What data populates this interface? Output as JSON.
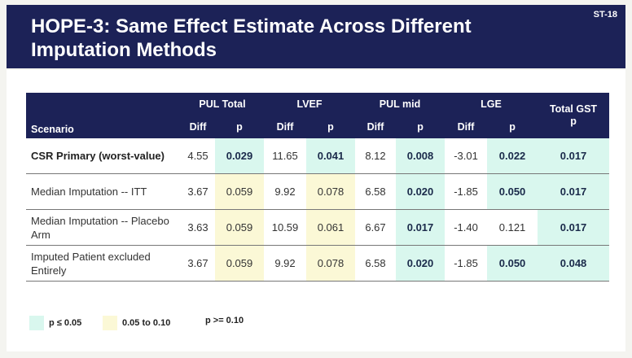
{
  "slide_id": "ST-18",
  "title": "HOPE-3: Same Effect Estimate Across Different Imputation Methods",
  "table": {
    "header_scenario": "Scenario",
    "groups": [
      "PUL Total",
      "LVEF",
      "PUL mid",
      "LGE"
    ],
    "gst_header": [
      "Total GST",
      "p"
    ],
    "sub_headers": [
      "Diff",
      "p"
    ],
    "rows": [
      {
        "scenario": "CSR Primary (worst-value)",
        "values": [
          "4.55",
          "0.029",
          "11.65",
          "0.041",
          "8.12",
          "0.008",
          "-3.01",
          "0.022",
          "0.017"
        ],
        "p_levels": [
          "sig",
          "sig",
          "sig",
          "sig",
          "sig"
        ]
      },
      {
        "scenario": "Median Imputation -- ITT",
        "values": [
          "3.67",
          "0.059",
          "9.92",
          "0.078",
          "6.58",
          "0.020",
          "-1.85",
          "0.050",
          "0.017"
        ],
        "p_levels": [
          "trend",
          "trend",
          "sig",
          "sig",
          "sig"
        ]
      },
      {
        "scenario": "Median Imputation -- Placebo Arm",
        "values": [
          "3.63",
          "0.059",
          "10.59",
          "0.061",
          "6.67",
          "0.017",
          "-1.40",
          "0.121",
          "0.017"
        ],
        "p_levels": [
          "trend",
          "trend",
          "sig",
          "ns",
          "sig"
        ]
      },
      {
        "scenario": "Imputed Patient excluded Entirely",
        "values": [
          "3.67",
          "0.059",
          "9.92",
          "0.078",
          "6.58",
          "0.020",
          "-1.85",
          "0.050",
          "0.048"
        ],
        "p_levels": [
          "trend",
          "trend",
          "sig",
          "sig",
          "sig"
        ]
      }
    ]
  },
  "legend": [
    {
      "label": "p ≤ 0.05",
      "color": "#d9f7ee"
    },
    {
      "label": "0.05 to 0.10",
      "color": "#fbf8d6"
    },
    {
      "label": "p >= 0.10",
      "color": ""
    }
  ],
  "colors": {
    "header_bg": "#1c2257",
    "significant": "#d9f7ee",
    "trend": "#fbf8d6"
  }
}
